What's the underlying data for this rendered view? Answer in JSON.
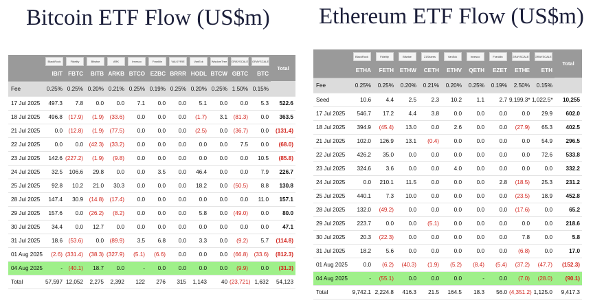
{
  "btc": {
    "title": "Bitcoin ETF Flow (US$m)",
    "logos": [
      "BlackRock",
      "Fidelity",
      "Bitwise",
      "ARK",
      "Invesco",
      "Franklin",
      "VALKYRIE",
      "VanEck",
      "WisdomTree",
      "GRAYSCALE",
      "GRAYSCALE"
    ],
    "header": [
      "IBIT",
      "FBTC",
      "BITB",
      "ARKB",
      "BTCO",
      "EZBC",
      "BRRR",
      "HODL",
      "BTCW",
      "GBTC",
      "BTC",
      "Total"
    ],
    "fee_label": "Fee",
    "fees": [
      "0.25%",
      "0.25%",
      "0.20%",
      "0.21%",
      "0.25%",
      "0.19%",
      "0.25%",
      "0.20%",
      "0.25%",
      "1.50%",
      "0.15%",
      ""
    ],
    "rows": [
      {
        "date": "17 Jul 2025",
        "values": [
          "497.3",
          "7.8",
          "0.0",
          "0.0",
          "7.1",
          "0.0",
          "0.0",
          "5.1",
          "0.0",
          "0.0",
          "5.3",
          "522.6"
        ]
      },
      {
        "date": "18 Jul 2025",
        "values": [
          "496.8",
          "(17.9)",
          "(1.9)",
          "(33.6)",
          "0.0",
          "0.0",
          "0.0",
          "(1.7)",
          "3.1",
          "(81.3)",
          "0.0",
          "363.5"
        ]
      },
      {
        "date": "21 Jul 2025",
        "values": [
          "0.0",
          "(12.8)",
          "(1.9)",
          "(77.5)",
          "0.0",
          "0.0",
          "0.0",
          "(2.5)",
          "0.0",
          "(36.7)",
          "0.0",
          "(131.4)"
        ]
      },
      {
        "date": "22 Jul 2025",
        "values": [
          "0.0",
          "0.0",
          "(42.3)",
          "(33.2)",
          "0.0",
          "0.0",
          "0.0",
          "0.0",
          "0.0",
          "7.5",
          "0.0",
          "(68.0)"
        ]
      },
      {
        "date": "23 Jul 2025",
        "values": [
          "142.6",
          "(227.2)",
          "(1.9)",
          "(9.8)",
          "0.0",
          "0.0",
          "0.0",
          "0.0",
          "0.0",
          "0.0",
          "10.5",
          "(85.8)"
        ]
      },
      {
        "date": "24 Jul 2025",
        "values": [
          "32.5",
          "106.6",
          "29.8",
          "0.0",
          "0.0",
          "3.5",
          "0.0",
          "46.4",
          "0.0",
          "0.0",
          "7.9",
          "226.7"
        ]
      },
      {
        "date": "25 Jul 2025",
        "values": [
          "92.8",
          "10.2",
          "21.0",
          "30.3",
          "0.0",
          "0.0",
          "0.0",
          "18.2",
          "0.0",
          "(50.5)",
          "8.8",
          "130.8"
        ]
      },
      {
        "date": "28 Jul 2025",
        "values": [
          "147.4",
          "30.9",
          "(14.8)",
          "(17.4)",
          "0.0",
          "0.0",
          "0.0",
          "0.0",
          "0.0",
          "0.0",
          "11.0",
          "157.1"
        ]
      },
      {
        "date": "29 Jul 2025",
        "values": [
          "157.6",
          "0.0",
          "(26.2)",
          "(8.2)",
          "0.0",
          "0.0",
          "0.0",
          "5.8",
          "0.0",
          "(49.0)",
          "0.0",
          "80.0"
        ]
      },
      {
        "date": "30 Jul 2025",
        "values": [
          "34.4",
          "0.0",
          "12.7",
          "0.0",
          "0.0",
          "0.0",
          "0.0",
          "0.0",
          "0.0",
          "0.0",
          "0.0",
          "47.1"
        ]
      },
      {
        "date": "31 Jul 2025",
        "values": [
          "18.6",
          "(53.6)",
          "0.0",
          "(89.9)",
          "3.5",
          "6.8",
          "0.0",
          "3.3",
          "0.0",
          "(9.2)",
          "5.7",
          "(114.8)"
        ]
      },
      {
        "date": "01 Aug 2025",
        "values": [
          "(2.6)",
          "(331.4)",
          "(38.3)",
          "(327.9)",
          "(5.1)",
          "(6.6)",
          "0.0",
          "0.0",
          "0.0",
          "(66.8)",
          "(33.6)",
          "(812.3)"
        ]
      },
      {
        "date": "04 Aug 2025",
        "highlight": true,
        "values": [
          "-",
          "(40.1)",
          "18.7",
          "0.0",
          "-",
          "0.0",
          "0.0",
          "0.0",
          "0.0",
          "(9.9)",
          "0.0",
          "(31.3)"
        ]
      }
    ],
    "total_label": "Total",
    "totals": [
      "57,597",
      "12,052",
      "2,275",
      "2,392",
      "122",
      "276",
      "315",
      "1,143",
      "40",
      "(23,721)",
      "1,632",
      "54,123"
    ]
  },
  "eth": {
    "title": "Ethereum ETF Flow (US$m)",
    "logos": [
      "BlackRock",
      "Fidelity",
      "Bitwise",
      "21Shares",
      "VanEck",
      "Invesco",
      "Franklin",
      "GRAYSCALE",
      "GRAYSCALE"
    ],
    "header": [
      "ETHA",
      "FETH",
      "ETHW",
      "CETH",
      "ETHV",
      "QETH",
      "EZET",
      "ETHE",
      "ETH",
      "Total"
    ],
    "fee_label": "Fee",
    "fees": [
      "0.25%",
      "0.25%",
      "0.20%",
      "0.21%",
      "0.20%",
      "0.25%",
      "0.19%",
      "2.50%",
      "0.15%",
      ""
    ],
    "rows": [
      {
        "date": "Seed",
        "values": [
          "10.6",
          "4.4",
          "2.5",
          "2.3",
          "10.2",
          "1.1",
          "2.7",
          "9,199.3*",
          "1,022.5*",
          "10,255"
        ]
      },
      {
        "date": "17 Jul 2025",
        "values": [
          "546.7",
          "17.2",
          "4.4",
          "3.8",
          "0.0",
          "0.0",
          "0.0",
          "0.0",
          "29.9",
          "602.0"
        ]
      },
      {
        "date": "18 Jul 2025",
        "values": [
          "394.9",
          "(45.4)",
          "13.0",
          "0.0",
          "2.6",
          "0.0",
          "0.0",
          "(27.9)",
          "65.3",
          "402.5"
        ]
      },
      {
        "date": "21 Jul 2025",
        "values": [
          "102.0",
          "126.9",
          "13.1",
          "(0.4)",
          "0.0",
          "0.0",
          "0.0",
          "0.0",
          "54.9",
          "296.5"
        ]
      },
      {
        "date": "22 Jul 2025",
        "values": [
          "426.2",
          "35.0",
          "0.0",
          "0.0",
          "0.0",
          "0.0",
          "0.0",
          "0.0",
          "72.6",
          "533.8"
        ]
      },
      {
        "date": "23 Jul 2025",
        "values": [
          "324.6",
          "3.6",
          "0.0",
          "0.0",
          "4.0",
          "0.0",
          "0.0",
          "0.0",
          "0.0",
          "332.2"
        ]
      },
      {
        "date": "24 Jul 2025",
        "values": [
          "0.0",
          "210.1",
          "11.5",
          "0.0",
          "0.0",
          "0.0",
          "2.8",
          "(18.5)",
          "25.3",
          "231.2"
        ]
      },
      {
        "date": "25 Jul 2025",
        "values": [
          "440.1",
          "7.3",
          "10.0",
          "0.0",
          "0.0",
          "0.0",
          "0.0",
          "(23.5)",
          "18.9",
          "452.8"
        ]
      },
      {
        "date": "28 Jul 2025",
        "values": [
          "132.0",
          "(49.2)",
          "0.0",
          "0.0",
          "0.0",
          "0.0",
          "0.0",
          "(17.6)",
          "0.0",
          "65.2"
        ]
      },
      {
        "date": "29 Jul 2025",
        "values": [
          "223.7",
          "0.0",
          "0.0",
          "(5.1)",
          "0.0",
          "0.0",
          "0.0",
          "0.0",
          "0.0",
          "218.6"
        ]
      },
      {
        "date": "30 Jul 2025",
        "values": [
          "20.3",
          "(22.3)",
          "0.0",
          "0.0",
          "0.0",
          "0.0",
          "0.0",
          "7.8",
          "0.0",
          "5.8"
        ]
      },
      {
        "date": "31 Jul 2025",
        "values": [
          "18.2",
          "5.6",
          "0.0",
          "0.0",
          "0.0",
          "0.0",
          "0.0",
          "(6.8)",
          "0.0",
          "17.0"
        ]
      },
      {
        "date": "01 Aug 2025",
        "values": [
          "0.0",
          "(6.2)",
          "(40.3)",
          "(1.9)",
          "(5.2)",
          "(8.4)",
          "(5.4)",
          "(37.2)",
          "(47.7)",
          "(152.3)"
        ]
      },
      {
        "date": "04 Aug 2025",
        "highlight": true,
        "values": [
          "-",
          "(55.1)",
          "0.0",
          "0.0",
          "0.0",
          "-",
          "0.0",
          "(7.0)",
          "(28.0)",
          "(90.1)"
        ]
      }
    ],
    "total_label": "Total",
    "totals": [
      "9,742.1",
      "2,224.8",
      "416.3",
      "21.5",
      "164.5",
      "18.3",
      "56.0",
      "(4,351.2)",
      "1,125.0",
      "9,417.3"
    ]
  }
}
